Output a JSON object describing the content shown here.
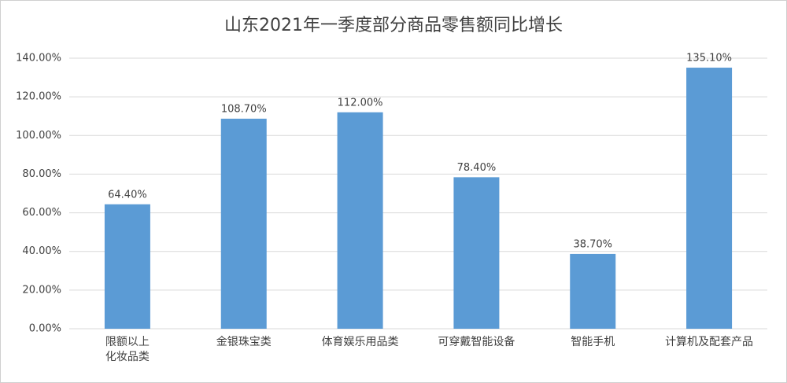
{
  "chart_data": {
    "type": "bar",
    "title": "山东2021年一季度部分商品零售额同比增长",
    "categories": [
      "限额以上\n化妆品类",
      "金银珠宝类",
      "体育娱乐用品类",
      "可穿戴智能设备",
      "智能手机",
      "计算机及配套产品"
    ],
    "values": [
      64.4,
      108.7,
      112.0,
      78.4,
      38.7,
      135.1
    ],
    "value_labels": [
      "64.40%",
      "108.70%",
      "112.00%",
      "78.40%",
      "38.70%",
      "135.10%"
    ],
    "color": "#5b9bd5",
    "ylim": [
      0,
      140
    ],
    "yticks": [
      {
        "value": 0,
        "label": "0.00%"
      },
      {
        "value": 20,
        "label": "20.00%"
      },
      {
        "value": 40,
        "label": "40.00%"
      },
      {
        "value": 60,
        "label": "60.00%"
      },
      {
        "value": 80,
        "label": "80.00%"
      },
      {
        "value": 100,
        "label": "100.00%"
      },
      {
        "value": 120,
        "label": "120.00%"
      },
      {
        "value": 140,
        "label": "140.00%"
      }
    ],
    "grid": true
  }
}
